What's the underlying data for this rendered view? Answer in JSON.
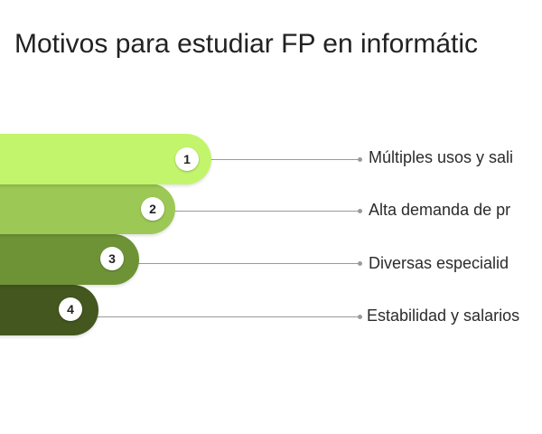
{
  "title": "Motivos para estudiar FP en informátic",
  "items": [
    {
      "number": "1",
      "label": "Múltiples usos y sali",
      "color": "#c2f56c"
    },
    {
      "number": "2",
      "label": "Alta demanda de pr",
      "color": "#9cc855"
    },
    {
      "number": "3",
      "label": "Diversas especialid",
      "color": "#6e9337"
    },
    {
      "number": "4",
      "label": "Estabilidad y salarios",
      "color": "#43571f"
    }
  ]
}
